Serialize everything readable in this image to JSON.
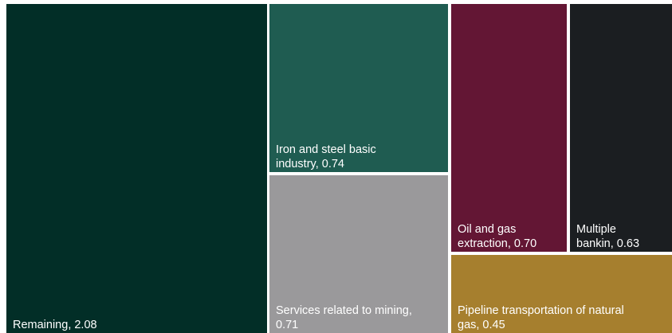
{
  "chart_data": {
    "type": "treemap",
    "title": "",
    "tiles": [
      {
        "label_lines": [
          "Remaining, 2.08"
        ],
        "name": "Remaining",
        "value": 2.08,
        "color": "#022e27"
      },
      {
        "label_lines": [
          "Iron and steel basic",
          "industry, 0.74"
        ],
        "name": "Iron and steel basic industry",
        "value": 0.74,
        "color": "#1f5c51"
      },
      {
        "label_lines": [
          "Services related to mining,",
          "0.71"
        ],
        "name": "Services related to mining",
        "value": 0.71,
        "color": "#9a999b"
      },
      {
        "label_lines": [
          "Oil and gas",
          "extraction, 0.70"
        ],
        "name": "Oil and gas extraction",
        "value": 0.7,
        "color": "#631634"
      },
      {
        "label_lines": [
          "Multiple",
          "bankin, 0.63"
        ],
        "name": "Multiple bankin",
        "value": 0.63,
        "color": "#1b1e21"
      },
      {
        "label_lines": [
          "Pipeline transportation of natural",
          "gas, 0.45"
        ],
        "name": "Pipeline transportation of natural gas",
        "value": 0.45,
        "color": "#a67f2e"
      }
    ]
  }
}
